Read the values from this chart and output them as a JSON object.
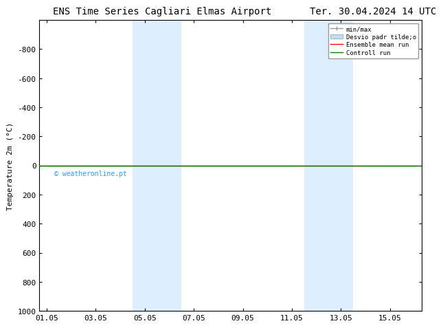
{
  "title_left": "ENS Time Series Cagliari Elmas Airport",
  "title_right": "Ter. 30.04.2024 14 UTC",
  "ylabel": "Temperature 2m (°C)",
  "ylim_bottom": 1000,
  "ylim_top": -1000,
  "yticks": [
    -800,
    -600,
    -400,
    -200,
    0,
    200,
    400,
    600,
    800,
    1000
  ],
  "xtick_labels": [
    "01.05",
    "03.05",
    "05.05",
    "07.05",
    "09.05",
    "11.05",
    "13.05",
    "15.05"
  ],
  "xtick_positions": [
    0,
    2,
    4,
    6,
    8,
    10,
    12,
    14
  ],
  "xmin": -0.3,
  "xmax": 15.3,
  "shaded_regions": [
    {
      "xmin": 3.5,
      "xmax": 5.5,
      "color": "#ddeeff"
    },
    {
      "xmin": 10.5,
      "xmax": 12.5,
      "color": "#ddeeff"
    }
  ],
  "green_line_y": 0,
  "red_line_y": 0,
  "watermark": "© weatheronline.pt",
  "watermark_color": "#3399ff",
  "background_color": "#ffffff",
  "border_color": "#000000",
  "title_fontsize": 10,
  "axis_fontsize": 8,
  "tick_fontsize": 8
}
